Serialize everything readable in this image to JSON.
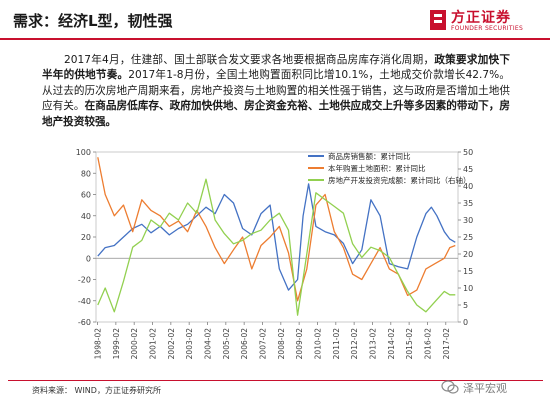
{
  "header": {
    "title": "需求：经济L型，韧性强",
    "brand_name": "方正证券",
    "brand_sub": "FOUNDER SECURITIES",
    "accent_color": "#c8102e"
  },
  "body": {
    "p1_a": "2017年4月，住建部、国土部联合发文要求各地要根据商品房库存消化周期，",
    "p1_b": "政策要求加快下半年的供地节奏。",
    "p1_c": "2017年1-8月份，全国土地购置面积同比增10.1%，土地成交价款增长42.7%。从过去的历次房地产周期来看，房地产投资与土地购置的相关性强于销售，这与政府是否增加土地供应有关。",
    "p1_d": "在商品房低库存、政府加快供地、房企资金充裕、土地供应成交上升等多因素的带动下，房地产投资较强。"
  },
  "chart_data": {
    "type": "line",
    "legend": [
      "商品房销售额：累计同比",
      "本年购置土地面积：累计同比",
      "房地产开发投资完成额：累计同比（右轴）"
    ],
    "legend_position": "top-right",
    "colors": [
      "#4472c4",
      "#ed7d31",
      "#92d050"
    ],
    "x_ticks": [
      "1998-02",
      "1999-02",
      "2000-02",
      "2001-02",
      "2002-02",
      "2003-02",
      "2004-02",
      "2005-02",
      "2006-02",
      "2007-02",
      "2008-02",
      "2009-02",
      "2010-02",
      "2011-02",
      "2012-02",
      "2013-02",
      "2014-02",
      "2015-02",
      "2016-02",
      "2017-02"
    ],
    "left_axis": {
      "ticks": [
        100,
        80,
        60,
        40,
        20,
        0,
        -20,
        -40,
        -60
      ],
      "ylim": [
        -60,
        100
      ]
    },
    "right_axis": {
      "ticks": [
        50,
        45,
        40,
        35,
        30,
        25,
        20,
        15,
        10,
        5,
        0
      ],
      "ylim": [
        0,
        50
      ]
    },
    "x_range": [
      1998.0,
      2017.75
    ],
    "series": [
      {
        "name": "商品房销售额：累计同比",
        "axis": "left",
        "x": [
          1998.1,
          1998.5,
          1999.0,
          1999.5,
          2000.0,
          2000.5,
          2001.0,
          2001.5,
          2002.0,
          2002.5,
          2003.0,
          2003.5,
          2004.0,
          2004.5,
          2005.0,
          2005.5,
          2006.0,
          2006.5,
          2007.0,
          2007.5,
          2008.0,
          2008.5,
          2009.0,
          2009.3,
          2009.6,
          2010.0,
          2010.5,
          2011.0,
          2011.5,
          2012.0,
          2012.5,
          2013.0,
          2013.5,
          2014.0,
          2014.5,
          2015.0,
          2015.5,
          2016.0,
          2016.3,
          2016.6,
          2017.0,
          2017.3,
          2017.6
        ],
        "values": [
          2,
          10,
          12,
          20,
          28,
          32,
          24,
          30,
          22,
          28,
          32,
          40,
          48,
          42,
          60,
          52,
          28,
          22,
          42,
          50,
          -10,
          -30,
          -20,
          40,
          70,
          30,
          25,
          22,
          14,
          -5,
          8,
          55,
          40,
          -5,
          -8,
          -10,
          20,
          42,
          48,
          40,
          25,
          18,
          15
        ]
      },
      {
        "name": "本年购置土地面积：累计同比",
        "axis": "left",
        "x": [
          1998.1,
          1998.5,
          1999.0,
          1999.5,
          2000.0,
          2000.5,
          2001.0,
          2001.5,
          2002.0,
          2002.5,
          2003.0,
          2003.5,
          2004.0,
          2004.5,
          2005.0,
          2005.5,
          2006.0,
          2006.5,
          2007.0,
          2007.5,
          2008.0,
          2008.5,
          2009.0,
          2009.5,
          2010.0,
          2010.5,
          2011.0,
          2011.5,
          2012.0,
          2012.5,
          2013.0,
          2013.5,
          2014.0,
          2014.5,
          2015.0,
          2015.5,
          2016.0,
          2016.5,
          2017.0,
          2017.3,
          2017.6
        ],
        "values": [
          95,
          60,
          40,
          50,
          25,
          55,
          45,
          40,
          30,
          35,
          25,
          45,
          30,
          10,
          -5,
          8,
          20,
          -10,
          12,
          20,
          30,
          5,
          -40,
          -10,
          50,
          60,
          25,
          10,
          -15,
          -20,
          -5,
          10,
          -10,
          -15,
          -35,
          -30,
          -10,
          -5,
          0,
          10,
          12
        ]
      },
      {
        "name": "房地产开发投资完成额：累计同比（右轴）",
        "axis": "right",
        "x": [
          1998.1,
          1998.5,
          1999.0,
          1999.5,
          2000.0,
          2000.5,
          2001.0,
          2001.5,
          2002.0,
          2002.5,
          2003.0,
          2003.5,
          2004.0,
          2004.5,
          2005.0,
          2005.5,
          2006.0,
          2006.5,
          2007.0,
          2007.5,
          2008.0,
          2008.5,
          2009.0,
          2009.5,
          2010.0,
          2010.5,
          2011.0,
          2011.5,
          2012.0,
          2012.5,
          2013.0,
          2013.5,
          2014.0,
          2014.5,
          2015.0,
          2015.5,
          2016.0,
          2016.5,
          2017.0,
          2017.3,
          2017.6
        ],
        "values": [
          5,
          10,
          3,
          12,
          22,
          24,
          30,
          28,
          32,
          30,
          35,
          32,
          42,
          30,
          26,
          23,
          24,
          26,
          27,
          30,
          32,
          27,
          2,
          20,
          38,
          36,
          34,
          32,
          23,
          19,
          22,
          21,
          19,
          14,
          9,
          5,
          3,
          6,
          9,
          8,
          8
        ]
      }
    ]
  },
  "footer": {
    "source": "资料来源：  WIND，方正证券研究所",
    "watermark": "泽平宏观"
  }
}
